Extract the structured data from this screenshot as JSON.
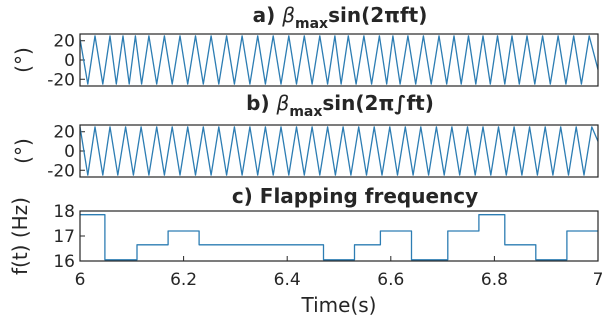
{
  "colors": {
    "series": "#2d7db3",
    "axis": "#262626",
    "background": "#ffffff"
  },
  "chart_data": [
    {
      "type": "line",
      "title": {
        "prefix": "a) ",
        "beta": "β",
        "sub": "max",
        "rest": "sin(2πft)"
      },
      "ylabel": "(°)",
      "xlim": [
        6,
        7
      ],
      "ylim": [
        -27,
        27
      ],
      "yticks": [
        20,
        0,
        -20
      ],
      "yticklabels": [
        "20",
        "0",
        "-20"
      ],
      "series": [
        {
          "x": [
            6.0,
            6.015,
            6.029,
            6.044,
            6.058,
            6.07,
            6.083,
            6.095,
            6.107,
            6.119,
            6.133,
            6.148,
            6.163,
            6.178,
            6.193,
            6.208,
            6.223,
            6.238,
            6.253,
            6.268,
            6.283,
            6.298,
            6.313,
            6.328,
            6.343,
            6.358,
            6.373,
            6.388,
            6.403,
            6.418,
            6.433,
            6.448,
            6.463,
            6.478,
            6.492,
            6.504,
            6.518,
            6.533,
            6.548,
            6.563,
            6.578,
            6.592,
            6.604,
            6.618,
            6.633,
            6.648,
            6.663,
            6.678,
            6.693,
            6.708,
            6.722,
            6.736,
            6.75,
            6.764,
            6.778,
            6.792,
            6.806,
            6.82,
            6.834,
            6.848,
            6.863,
            6.878,
            6.893,
            6.908,
            6.923,
            6.938,
            6.953,
            6.968,
            6.983,
            7.0
          ],
          "y": [
            22,
            -25,
            25,
            -25,
            25,
            -25,
            25,
            -25,
            25,
            -25,
            25,
            -25,
            25,
            -25,
            25,
            -25,
            25,
            -25,
            25,
            -25,
            25,
            -25,
            25,
            -25,
            25,
            -25,
            25,
            -25,
            25,
            -25,
            25,
            -25,
            25,
            -25,
            25,
            -25,
            25,
            -25,
            25,
            -25,
            25,
            -25,
            25,
            -25,
            25,
            -25,
            25,
            -25,
            25,
            -25,
            25,
            -25,
            25,
            -25,
            25,
            -25,
            25,
            -25,
            25,
            -25,
            25,
            -25,
            25,
            -25,
            25,
            -25,
            25,
            -25,
            25,
            -10
          ]
        }
      ]
    },
    {
      "type": "line",
      "title": {
        "prefix": "b) ",
        "beta": "β",
        "sub": "max",
        "rest": "sin(2π∫ft)"
      },
      "ylabel": "(°)",
      "xlim": [
        6,
        7
      ],
      "ylim": [
        -27,
        27
      ],
      "yticks": [
        20,
        0,
        -20
      ],
      "yticklabels": [
        "20",
        "0",
        "-20"
      ],
      "series": [
        {
          "x": [
            6.0,
            6.015,
            6.029,
            6.044,
            6.058,
            6.073,
            6.088,
            6.103,
            6.118,
            6.133,
            6.148,
            6.163,
            6.178,
            6.193,
            6.208,
            6.223,
            6.238,
            6.253,
            6.268,
            6.283,
            6.298,
            6.313,
            6.328,
            6.343,
            6.358,
            6.373,
            6.388,
            6.403,
            6.418,
            6.433,
            6.448,
            6.463,
            6.478,
            6.493,
            6.508,
            6.523,
            6.538,
            6.553,
            6.568,
            6.583,
            6.598,
            6.613,
            6.628,
            6.643,
            6.658,
            6.673,
            6.688,
            6.703,
            6.718,
            6.733,
            6.748,
            6.763,
            6.778,
            6.793,
            6.808,
            6.823,
            6.838,
            6.853,
            6.868,
            6.883,
            6.898,
            6.913,
            6.928,
            6.943,
            6.958,
            6.973,
            6.988,
            7.0
          ],
          "y": [
            25,
            -25,
            25,
            -25,
            25,
            -25,
            25,
            -25,
            25,
            -25,
            25,
            -25,
            25,
            -25,
            25,
            -25,
            25,
            -25,
            25,
            -25,
            25,
            -25,
            25,
            -25,
            25,
            -25,
            25,
            -25,
            25,
            -25,
            25,
            -25,
            25,
            -25,
            25,
            -25,
            25,
            -25,
            25,
            -25,
            25,
            -25,
            25,
            -25,
            25,
            -25,
            25,
            -25,
            25,
            -25,
            25,
            -25,
            25,
            -25,
            25,
            -25,
            25,
            -25,
            25,
            -25,
            25,
            -25,
            25,
            -25,
            25,
            -25,
            25,
            10
          ]
        }
      ]
    },
    {
      "type": "line",
      "title": {
        "prefix": "c) ",
        "beta": "",
        "sub": "",
        "rest": "Flapping frequency"
      },
      "ylabel": "f(t) (Hz)",
      "xlabel": "Time(s)",
      "xlim": [
        6,
        7
      ],
      "ylim": [
        16,
        18
      ],
      "xticks": [
        6,
        6.2,
        6.4,
        6.6,
        6.8,
        7
      ],
      "xticklabels": [
        "6",
        "6.2",
        "6.4",
        "6.6",
        "6.8",
        "7"
      ],
      "yticks": [
        18,
        17,
        16
      ],
      "yticklabels": [
        "18",
        "17",
        "16"
      ],
      "series": [
        {
          "step": true,
          "x": [
            6.0,
            6.048,
            6.11,
            6.17,
            6.23,
            6.47,
            6.53,
            6.58,
            6.64,
            6.71,
            6.77,
            6.82,
            6.88,
            6.94,
            7.0
          ],
          "y": [
            17.85,
            16.05,
            16.65,
            17.2,
            16.65,
            16.05,
            16.65,
            17.2,
            16.05,
            17.2,
            17.85,
            16.65,
            16.05,
            17.2,
            17.2
          ]
        }
      ]
    }
  ]
}
